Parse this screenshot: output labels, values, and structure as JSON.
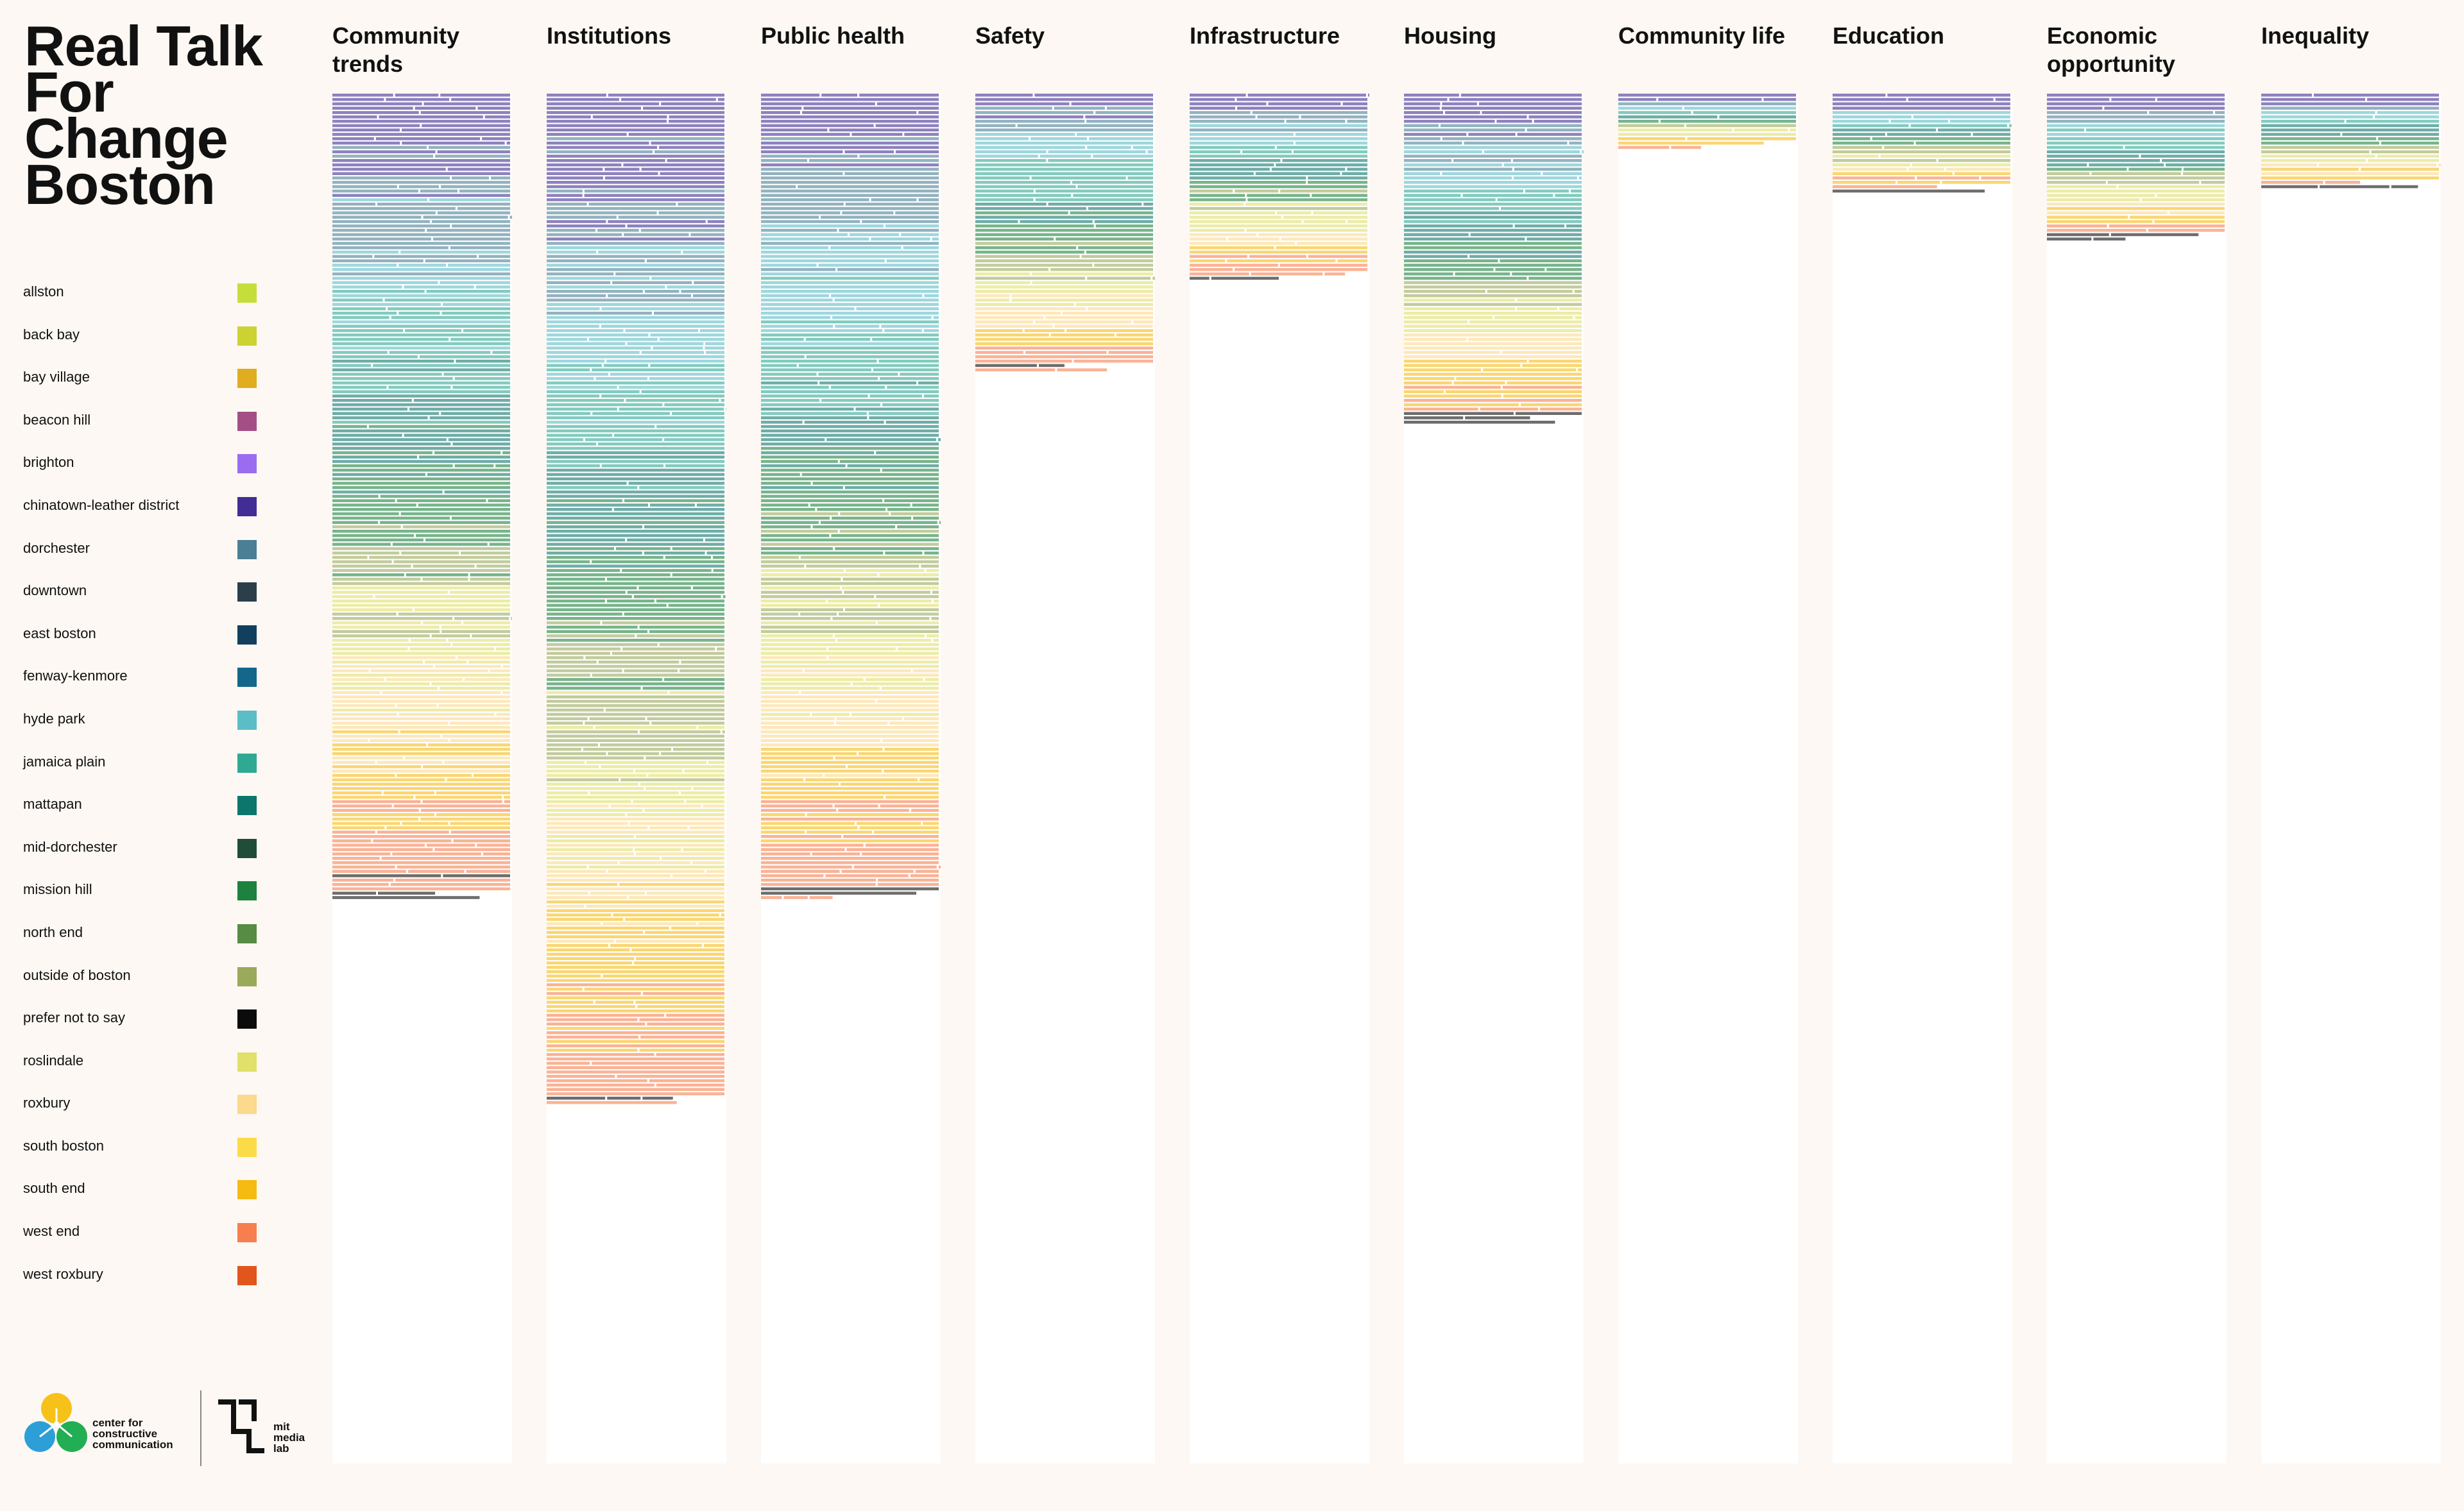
{
  "title": "Real Talk For Change Boston",
  "legend": [
    {
      "label": "allston",
      "color": "#c5de3a"
    },
    {
      "label": "back bay",
      "color": "#cdd233"
    },
    {
      "label": "bay village",
      "color": "#dfad1f"
    },
    {
      "label": "beacon hill",
      "color": "#a34f86"
    },
    {
      "label": "brighton",
      "color": "#9a6cf0"
    },
    {
      "label": "chinatown-leather district",
      "color": "#412d93"
    },
    {
      "label": "dorchester",
      "color": "#4a7f95"
    },
    {
      "label": "downtown",
      "color": "#2d3e4b"
    },
    {
      "label": "east boston",
      "color": "#123f5e"
    },
    {
      "label": "fenway-kenmore",
      "color": "#15668b"
    },
    {
      "label": "hyde park",
      "color": "#5bbdc6"
    },
    {
      "label": "jamaica plain",
      "color": "#2fa993"
    },
    {
      "label": "mattapan",
      "color": "#0d766c"
    },
    {
      "label": "mid-dorchester",
      "color": "#1f4d38"
    },
    {
      "label": "mission hill",
      "color": "#1d823d"
    },
    {
      "label": "north end",
      "color": "#568c43"
    },
    {
      "label": "outside of boston",
      "color": "#9aa95a"
    },
    {
      "label": "prefer not to say",
      "color": "#0b0b0b"
    },
    {
      "label": "roslindale",
      "color": "#e0e06a"
    },
    {
      "label": "roxbury",
      "color": "#fbd98d"
    },
    {
      "label": "south boston",
      "color": "#fcdb49"
    },
    {
      "label": "south end",
      "color": "#f6bb12"
    },
    {
      "label": "west end",
      "color": "#f77f4f"
    },
    {
      "label": "west roxbury",
      "color": "#e2551b"
    }
  ],
  "logos": {
    "left_text": "center for\nconstructive\ncommunication",
    "right_text": "mit\nmedia\nlab"
  },
  "chart_data": {
    "type": "bar",
    "categories": [
      "Community trends",
      "Institutions",
      "Public health",
      "Safety",
      "Infrastructure",
      "Housing",
      "Community life",
      "Education",
      "Economic opportunity",
      "Inequality"
    ],
    "values": [
      185,
      232,
      185,
      64,
      43,
      76,
      13,
      23,
      34,
      22
    ],
    "segment_order": [
      "chinatown-leather district",
      "dorchester",
      "hyde park",
      "jamaica plain",
      "mattapan",
      "mission hill",
      "outside of boston",
      "roslindale",
      "roxbury",
      "south end",
      "west end",
      "prefer not to say"
    ]
  }
}
